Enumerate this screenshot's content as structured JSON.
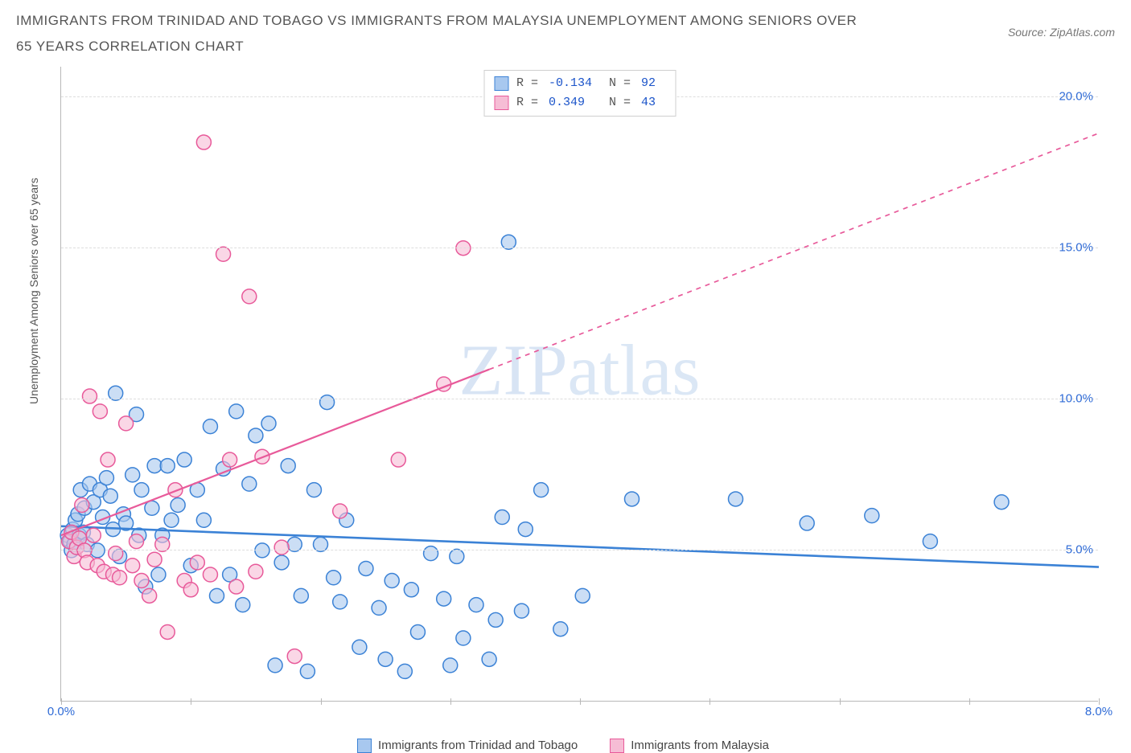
{
  "title": "IMMIGRANTS FROM TRINIDAD AND TOBAGO VS IMMIGRANTS FROM MALAYSIA UNEMPLOYMENT AMONG SENIORS OVER 65 YEARS CORRELATION CHART",
  "source_prefix": "Source: ",
  "source_name": "ZipAtlas.com",
  "y_axis_label": "Unemployment Among Seniors over 65 years",
  "watermark": "ZIPatlas",
  "chart": {
    "type": "scatter",
    "x_range": [
      0,
      8
    ],
    "y_range": [
      0,
      21
    ],
    "x_ticks": [
      0,
      1,
      2,
      3,
      4,
      5,
      6,
      7,
      8
    ],
    "x_tick_labels": {
      "0": "0.0%",
      "8": "8.0%"
    },
    "y_ticks": [
      5,
      10,
      15,
      20
    ],
    "y_tick_labels": {
      "5": "5.0%",
      "10": "10.0%",
      "15": "15.0%",
      "20": "20.0%"
    },
    "grid_color": "#dddddd",
    "background": "#ffffff",
    "marker_radius": 9,
    "marker_stroke_width": 1.5,
    "marker_fill_opacity": 0.25,
    "trend_line_width": 2.2,
    "series": [
      {
        "name": "Immigrants from Trinidad and Tobago",
        "color_stroke": "#3b82d6",
        "color_fill": "#a8c8ef",
        "R": "-0.134",
        "N": "92",
        "trend": {
          "x1": 0,
          "y1": 5.8,
          "x2": 8,
          "y2": 4.45,
          "dash": false
        },
        "points": [
          [
            0.05,
            5.5
          ],
          [
            0.07,
            5.3
          ],
          [
            0.08,
            5.0
          ],
          [
            0.09,
            5.7
          ],
          [
            0.1,
            5.2
          ],
          [
            0.11,
            6.0
          ],
          [
            0.12,
            5.1
          ],
          [
            0.13,
            6.2
          ],
          [
            0.14,
            5.5
          ],
          [
            0.15,
            7.0
          ],
          [
            0.17,
            5.6
          ],
          [
            0.18,
            6.4
          ],
          [
            0.2,
            5.2
          ],
          [
            0.22,
            7.2
          ],
          [
            0.25,
            6.6
          ],
          [
            0.28,
            5.0
          ],
          [
            0.3,
            7.0
          ],
          [
            0.32,
            6.1
          ],
          [
            0.35,
            7.4
          ],
          [
            0.38,
            6.8
          ],
          [
            0.4,
            5.7
          ],
          [
            0.42,
            10.2
          ],
          [
            0.45,
            4.8
          ],
          [
            0.48,
            6.2
          ],
          [
            0.5,
            5.9
          ],
          [
            0.55,
            7.5
          ],
          [
            0.58,
            9.5
          ],
          [
            0.6,
            5.5
          ],
          [
            0.62,
            7.0
          ],
          [
            0.65,
            3.8
          ],
          [
            0.7,
            6.4
          ],
          [
            0.72,
            7.8
          ],
          [
            0.75,
            4.2
          ],
          [
            0.78,
            5.5
          ],
          [
            0.82,
            7.8
          ],
          [
            0.85,
            6.0
          ],
          [
            0.9,
            6.5
          ],
          [
            0.95,
            8.0
          ],
          [
            1.0,
            4.5
          ],
          [
            1.05,
            7.0
          ],
          [
            1.1,
            6.0
          ],
          [
            1.15,
            9.1
          ],
          [
            1.2,
            3.5
          ],
          [
            1.25,
            7.7
          ],
          [
            1.3,
            4.2
          ],
          [
            1.35,
            9.6
          ],
          [
            1.4,
            3.2
          ],
          [
            1.45,
            7.2
          ],
          [
            1.5,
            8.8
          ],
          [
            1.55,
            5.0
          ],
          [
            1.6,
            9.2
          ],
          [
            1.65,
            1.2
          ],
          [
            1.7,
            4.6
          ],
          [
            1.75,
            7.8
          ],
          [
            1.8,
            5.2
          ],
          [
            1.85,
            3.5
          ],
          [
            1.9,
            1.0
          ],
          [
            1.95,
            7.0
          ],
          [
            2.0,
            5.2
          ],
          [
            2.05,
            9.9
          ],
          [
            2.1,
            4.1
          ],
          [
            2.15,
            3.3
          ],
          [
            2.2,
            6.0
          ],
          [
            2.3,
            1.8
          ],
          [
            2.35,
            4.4
          ],
          [
            2.45,
            3.1
          ],
          [
            2.5,
            1.4
          ],
          [
            2.55,
            4.0
          ],
          [
            2.65,
            1.0
          ],
          [
            2.7,
            3.7
          ],
          [
            2.75,
            2.3
          ],
          [
            2.85,
            4.9
          ],
          [
            2.95,
            3.4
          ],
          [
            3.0,
            1.2
          ],
          [
            3.05,
            4.8
          ],
          [
            3.1,
            2.1
          ],
          [
            3.2,
            3.2
          ],
          [
            3.3,
            1.4
          ],
          [
            3.35,
            2.7
          ],
          [
            3.4,
            6.1
          ],
          [
            3.45,
            15.2
          ],
          [
            3.55,
            3.0
          ],
          [
            3.58,
            5.7
          ],
          [
            3.7,
            7.0
          ],
          [
            3.85,
            2.4
          ],
          [
            4.02,
            3.5
          ],
          [
            4.4,
            6.7
          ],
          [
            5.2,
            6.7
          ],
          [
            5.75,
            5.9
          ],
          [
            6.25,
            6.15
          ],
          [
            6.7,
            5.3
          ],
          [
            7.25,
            6.6
          ]
        ]
      },
      {
        "name": "Immigrants from Malaysia",
        "color_stroke": "#e85a9a",
        "color_fill": "#f6bdd5",
        "R": "0.349",
        "N": "43",
        "trend": {
          "x1": 0,
          "y1": 5.5,
          "x2": 8,
          "y2": 18.8,
          "dash_after_x": 3.3
        },
        "points": [
          [
            0.06,
            5.3
          ],
          [
            0.08,
            5.6
          ],
          [
            0.1,
            4.8
          ],
          [
            0.12,
            5.1
          ],
          [
            0.14,
            5.4
          ],
          [
            0.16,
            6.5
          ],
          [
            0.18,
            5.0
          ],
          [
            0.2,
            4.6
          ],
          [
            0.22,
            10.1
          ],
          [
            0.25,
            5.5
          ],
          [
            0.28,
            4.5
          ],
          [
            0.3,
            9.6
          ],
          [
            0.33,
            4.3
          ],
          [
            0.36,
            8.0
          ],
          [
            0.4,
            4.2
          ],
          [
            0.42,
            4.9
          ],
          [
            0.45,
            4.1
          ],
          [
            0.5,
            9.2
          ],
          [
            0.55,
            4.5
          ],
          [
            0.58,
            5.3
          ],
          [
            0.62,
            4.0
          ],
          [
            0.68,
            3.5
          ],
          [
            0.72,
            4.7
          ],
          [
            0.78,
            5.2
          ],
          [
            0.82,
            2.3
          ],
          [
            0.88,
            7.0
          ],
          [
            0.95,
            4.0
          ],
          [
            1.0,
            3.7
          ],
          [
            1.05,
            4.6
          ],
          [
            1.1,
            18.5
          ],
          [
            1.15,
            4.2
          ],
          [
            1.25,
            14.8
          ],
          [
            1.3,
            8.0
          ],
          [
            1.35,
            3.8
          ],
          [
            1.45,
            13.4
          ],
          [
            1.5,
            4.3
          ],
          [
            1.55,
            8.1
          ],
          [
            1.7,
            5.1
          ],
          [
            1.8,
            1.5
          ],
          [
            2.15,
            6.3
          ],
          [
            2.6,
            8.0
          ],
          [
            2.95,
            10.5
          ],
          [
            3.1,
            15.0
          ]
        ]
      }
    ]
  },
  "legend_bottom": [
    {
      "label": "Immigrants from Trinidad and Tobago",
      "fill": "#a8c8ef",
      "stroke": "#3b82d6"
    },
    {
      "label": "Immigrants from Malaysia",
      "fill": "#f6bdd5",
      "stroke": "#e85a9a"
    }
  ]
}
